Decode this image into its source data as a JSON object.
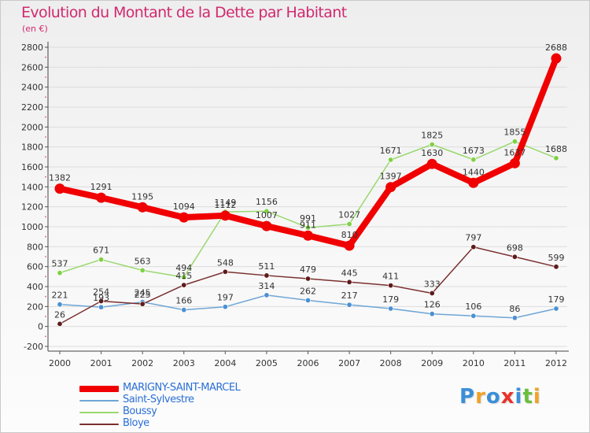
{
  "chart_data": {
    "type": "line",
    "title": "Evolution du Montant de la Dette par Habitant",
    "subtitle": "(en €)",
    "x": [
      "2000",
      "2001",
      "2002",
      "2003",
      "2004",
      "2005",
      "2006",
      "2007",
      "2008",
      "2009",
      "2010",
      "2011",
      "2012"
    ],
    "ylim": [
      -200,
      2800
    ],
    "yticks": [
      -200,
      0,
      200,
      400,
      600,
      800,
      1000,
      1200,
      1400,
      1600,
      1800,
      2000,
      2200,
      2400,
      2600,
      2800
    ],
    "grid": "horizontal",
    "legend_position": "bottom-left",
    "series": [
      {
        "name": "Saint-Sylvestre",
        "color": "#6fa6d6",
        "marker": "#4b90d4",
        "values": [
          221,
          193,
          245,
          166,
          197,
          314,
          262,
          217,
          179,
          126,
          106,
          86,
          179
        ]
      },
      {
        "name": "Boussy",
        "color": "#9ad86e",
        "marker": "#7fd143",
        "values": [
          537,
          671,
          563,
          494,
          1149,
          1156,
          991,
          1027,
          1671,
          1825,
          1673,
          1855,
          1688
        ]
      },
      {
        "name": "Bloye",
        "color": "#7a2f2f",
        "marker": "#5e1b1b",
        "values": [
          26,
          254,
          225,
          415,
          548,
          511,
          479,
          445,
          411,
          333,
          797,
          698,
          599
        ]
      },
      {
        "name": "MARIGNY-SAINT-MARCEL",
        "color": "#f00000",
        "marker": "#f00000",
        "values": [
          1382,
          1291,
          1195,
          1094,
          1112,
          1007,
          911,
          810,
          1397,
          1630,
          1440,
          1637,
          2688
        ]
      }
    ]
  },
  "legend": {
    "items": [
      {
        "name": "MARIGNY-SAINT-MARCEL",
        "color": "#f00000"
      },
      {
        "name": "Saint-Sylvestre",
        "color": "#6fa6d6"
      },
      {
        "name": "Boussy",
        "color": "#9ad86e"
      },
      {
        "name": "Bloye",
        "color": "#7a2f2f"
      }
    ]
  },
  "brand": {
    "letters": [
      {
        "ch": "P",
        "color": "#3a8fd8"
      },
      {
        "ch": "r",
        "color": "#f0a22a"
      },
      {
        "ch": "o",
        "color": "#3a8fd8"
      },
      {
        "ch": "x",
        "color": "#e8332a"
      },
      {
        "ch": "i",
        "color": "#3a8fd8"
      },
      {
        "ch": "t",
        "color": "#6abf3c"
      },
      {
        "ch": "i",
        "color": "#f0a22a"
      }
    ]
  }
}
